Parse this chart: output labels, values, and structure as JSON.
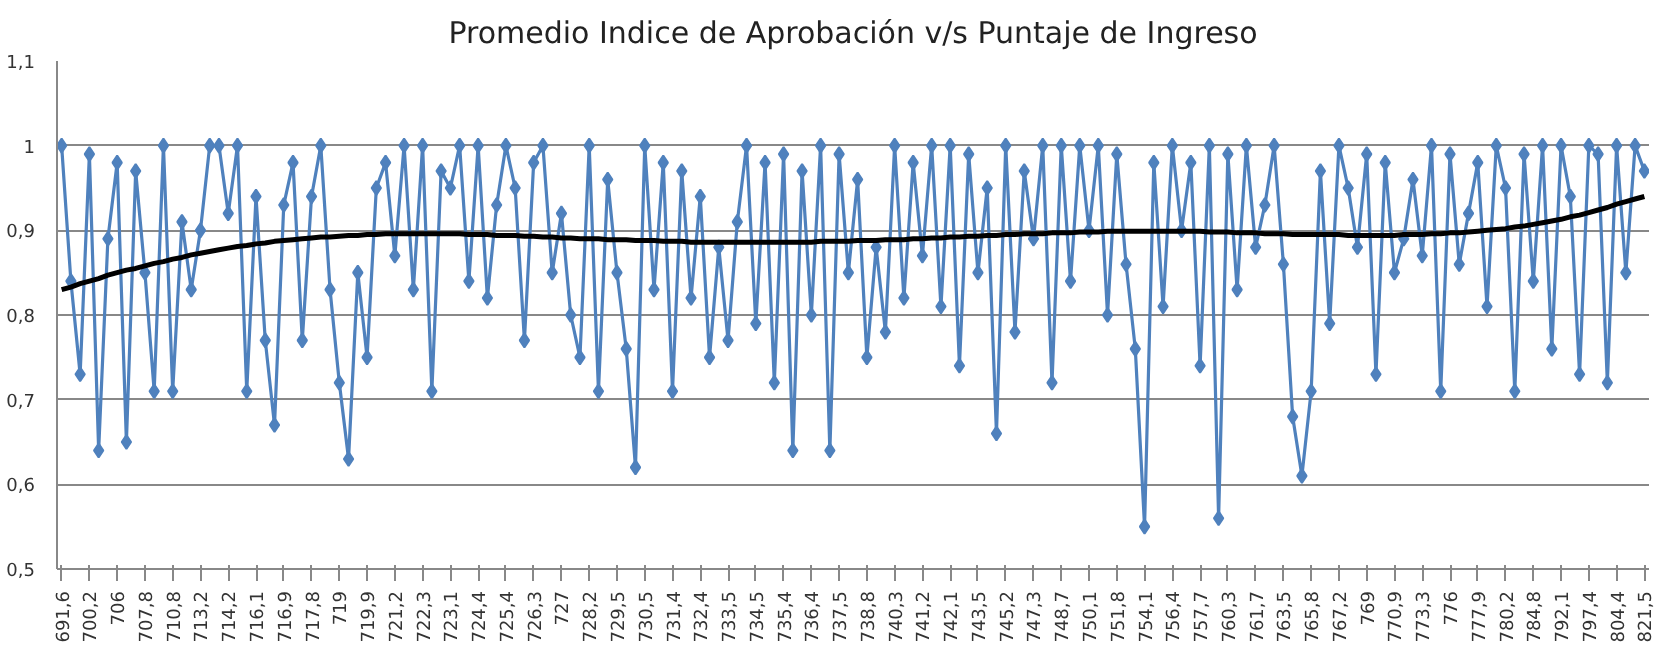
{
  "chart_data": {
    "type": "line",
    "title": "Promedio Indice de Aprobación v/s Puntaje de Ingreso",
    "categories": [
      "691,6",
      null,
      null,
      "700,2",
      null,
      null,
      "706",
      null,
      null,
      "707,8",
      null,
      null,
      "710,8",
      null,
      null,
      "713,2",
      null,
      null,
      "714,2",
      null,
      null,
      "716,1",
      null,
      null,
      "716,9",
      null,
      null,
      "717,8",
      null,
      null,
      "719",
      null,
      null,
      "719,9",
      null,
      null,
      "721,2",
      null,
      null,
      "722,3",
      null,
      null,
      "723,1",
      null,
      null,
      "724,4",
      null,
      null,
      "725,4",
      null,
      null,
      "726,3",
      null,
      null,
      "727",
      null,
      null,
      "728,2",
      null,
      null,
      "729,5",
      null,
      null,
      "730,5",
      null,
      null,
      "731,4",
      null,
      null,
      "732,4",
      null,
      null,
      "733,5",
      null,
      null,
      "734,5",
      null,
      null,
      "735,4",
      null,
      null,
      "736,4",
      null,
      null,
      "737,5",
      null,
      null,
      "738,8",
      null,
      null,
      "740,3",
      null,
      null,
      "741,2",
      null,
      null,
      "742,1",
      null,
      null,
      "743,5",
      null,
      null,
      "745,2",
      null,
      null,
      "747,3",
      null,
      null,
      "748,7",
      null,
      null,
      "750,1",
      null,
      null,
      "751,8",
      null,
      null,
      "754,1",
      null,
      null,
      "756,4",
      null,
      null,
      "757,7",
      null,
      null,
      "760,3",
      null,
      null,
      "761,7",
      null,
      null,
      "763,5",
      null,
      null,
      "765,8",
      null,
      null,
      "767,2",
      null,
      null,
      "769",
      null,
      null,
      "770,9",
      null,
      null,
      "773,3",
      null,
      null,
      "776",
      null,
      null,
      "777,9",
      null,
      null,
      "780,2",
      null,
      null,
      "784,8",
      null,
      null,
      "792,1",
      null,
      null,
      "797,4",
      null,
      null,
      "804,4",
      null,
      null,
      "821,5"
    ],
    "series": [
      {
        "color": "#4f81bd",
        "marker": "diamond",
        "values": [
          1.0,
          0.84,
          0.73,
          0.99,
          0.64,
          0.89,
          0.98,
          0.65,
          0.97,
          0.85,
          0.71,
          1.0,
          0.71,
          0.91,
          0.83,
          0.9,
          1.0,
          1.0,
          0.92,
          1.0,
          0.71,
          0.94,
          0.77,
          0.67,
          0.93,
          0.98,
          0.77,
          0.94,
          1.0,
          0.83,
          0.72,
          0.63,
          0.85,
          0.75,
          0.95,
          0.98,
          0.87,
          1.0,
          0.83,
          1.0,
          0.71,
          0.97,
          0.95,
          1.0,
          0.84,
          1.0,
          0.82,
          0.93,
          1.0,
          0.95,
          0.77,
          0.98,
          1.0,
          0.85,
          0.92,
          0.8,
          0.75,
          1.0,
          0.71,
          0.96,
          0.85,
          0.76,
          0.62,
          1.0,
          0.83,
          0.98,
          0.71,
          0.97,
          0.82,
          0.94,
          0.75,
          0.88,
          0.77,
          0.91,
          1.0,
          0.79,
          0.98,
          0.72,
          0.99,
          0.64,
          0.97,
          0.8,
          1.0,
          0.64,
          0.99,
          0.85,
          0.96,
          0.75,
          0.88,
          0.78,
          1.0,
          0.82,
          0.98,
          0.87,
          1.0,
          0.81,
          1.0,
          0.74,
          0.99,
          0.85,
          0.95,
          0.66,
          1.0,
          0.78,
          0.97,
          0.89,
          1.0,
          0.72,
          1.0,
          0.84,
          1.0,
          0.9,
          1.0,
          0.8,
          0.99,
          0.86,
          0.76,
          0.55,
          0.98,
          0.81,
          1.0,
          0.9,
          0.98,
          0.74,
          1.0,
          0.56,
          0.99,
          0.83,
          1.0,
          0.88,
          0.93,
          1.0,
          0.86,
          0.68,
          0.61,
          0.71,
          0.97,
          0.79,
          1.0,
          0.95,
          0.88,
          0.99,
          0.73,
          0.98,
          0.85,
          0.89,
          0.96,
          0.87,
          1.0,
          0.71,
          0.99,
          0.86,
          0.92,
          0.98,
          0.81,
          1.0,
          0.95,
          0.71,
          0.99,
          0.84,
          1.0,
          0.76,
          1.0,
          0.94,
          0.73,
          1.0,
          0.99,
          0.72,
          1.0,
          0.85,
          1.0,
          0.97
        ]
      },
      {
        "color": "#000000",
        "marker": "none",
        "values": [
          0.83,
          0.833,
          0.837,
          0.84,
          0.843,
          0.847,
          0.85,
          0.853,
          0.855,
          0.858,
          0.861,
          0.863,
          0.866,
          0.868,
          0.871,
          0.873,
          0.875,
          0.877,
          0.879,
          0.881,
          0.882,
          0.884,
          0.885,
          0.887,
          0.888,
          0.889,
          0.89,
          0.891,
          0.892,
          0.892,
          0.893,
          0.894,
          0.894,
          0.895,
          0.895,
          0.896,
          0.896,
          0.896,
          0.896,
          0.896,
          0.896,
          0.896,
          0.896,
          0.896,
          0.895,
          0.895,
          0.895,
          0.894,
          0.894,
          0.894,
          0.893,
          0.893,
          0.892,
          0.892,
          0.891,
          0.891,
          0.89,
          0.89,
          0.89,
          0.889,
          0.889,
          0.889,
          0.888,
          0.888,
          0.888,
          0.887,
          0.887,
          0.887,
          0.886,
          0.886,
          0.886,
          0.886,
          0.886,
          0.886,
          0.886,
          0.886,
          0.886,
          0.886,
          0.886,
          0.886,
          0.886,
          0.886,
          0.887,
          0.887,
          0.887,
          0.887,
          0.888,
          0.888,
          0.888,
          0.889,
          0.889,
          0.889,
          0.89,
          0.89,
          0.891,
          0.891,
          0.892,
          0.892,
          0.893,
          0.893,
          0.894,
          0.894,
          0.895,
          0.895,
          0.896,
          0.896,
          0.896,
          0.897,
          0.897,
          0.897,
          0.898,
          0.898,
          0.898,
          0.899,
          0.899,
          0.899,
          0.899,
          0.899,
          0.899,
          0.899,
          0.899,
          0.899,
          0.899,
          0.899,
          0.898,
          0.898,
          0.898,
          0.897,
          0.897,
          0.897,
          0.896,
          0.896,
          0.896,
          0.895,
          0.895,
          0.895,
          0.895,
          0.895,
          0.895,
          0.894,
          0.894,
          0.894,
          0.894,
          0.894,
          0.894,
          0.895,
          0.895,
          0.895,
          0.896,
          0.896,
          0.897,
          0.897,
          0.898,
          0.899,
          0.9,
          0.901,
          0.902,
          0.904,
          0.905,
          0.907,
          0.909,
          0.911,
          0.913,
          0.916,
          0.918,
          0.921,
          0.924,
          0.927,
          0.931,
          0.934,
          0.937,
          0.94
        ]
      }
    ],
    "ylim": [
      0.5,
      1.1
    ],
    "yticks": [
      {
        "value": 0.5,
        "label": "0,5"
      },
      {
        "value": 0.6,
        "label": "0,6"
      },
      {
        "value": 0.7,
        "label": "0,7"
      },
      {
        "value": 0.8,
        "label": "0,8"
      },
      {
        "value": 0.9,
        "label": "0,9"
      },
      1,
      {
        "value": 1.1,
        "label": "1,1"
      }
    ],
    "grid": "y"
  }
}
